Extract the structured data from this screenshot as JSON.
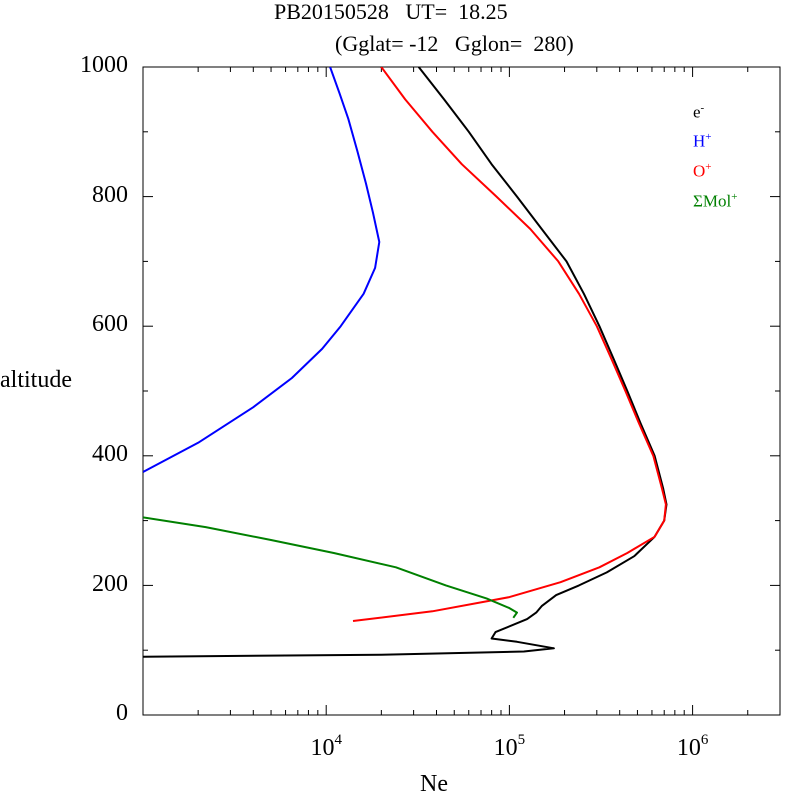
{
  "header": {
    "title_line1": "PB20150528   UT=  18.25",
    "title_line2": "(Gglat= -12   Gglon=  280)"
  },
  "chart_data": {
    "type": "line",
    "title": "PB20150528   UT=  18.25",
    "subtitle": "(Gglat= -12   Gglon=  280)",
    "xlabel": "Ne",
    "ylabel": "altitude",
    "x_scale": "log",
    "xlim": [
      1000,
      3000000
    ],
    "ylim": [
      0,
      1000
    ],
    "x_major_ticks": [
      10000,
      100000,
      1000000
    ],
    "x_tick_labels": [
      {
        "base": "10",
        "exp": "4"
      },
      {
        "base": "10",
        "exp": "5"
      },
      {
        "base": "10",
        "exp": "6"
      }
    ],
    "y_ticks": [
      0,
      200,
      400,
      600,
      800,
      1000
    ],
    "y_tick_labels": [
      "0",
      "200",
      "400",
      "600",
      "800",
      "1000"
    ],
    "grid": false,
    "legend_position": "top-right",
    "legend": [
      {
        "base": "e",
        "sup": "-",
        "color": "#000000"
      },
      {
        "base": "H",
        "sup": "+",
        "color": "#0000ff"
      },
      {
        "base": "O",
        "sup": "+",
        "color": "#ff0000"
      },
      {
        "base": "ΣMol",
        "sup": "+",
        "color": "#008000"
      }
    ],
    "series": [
      {
        "color": "#000000",
        "points": [
          [
            1000,
            90
          ],
          [
            20000,
            93
          ],
          [
            120000,
            98
          ],
          [
            175000,
            103
          ],
          [
            110000,
            113
          ],
          [
            80000,
            118
          ],
          [
            84000,
            128
          ],
          [
            125000,
            148
          ],
          [
            140000,
            158
          ],
          [
            150000,
            168
          ],
          [
            180000,
            185
          ],
          [
            240000,
            200
          ],
          [
            340000,
            220
          ],
          [
            480000,
            245
          ],
          [
            620000,
            275
          ],
          [
            700000,
            300
          ],
          [
            720000,
            325
          ],
          [
            690000,
            350
          ],
          [
            620000,
            400
          ],
          [
            520000,
            450
          ],
          [
            440000,
            500
          ],
          [
            370000,
            550
          ],
          [
            310000,
            600
          ],
          [
            255000,
            650
          ],
          [
            205000,
            700
          ],
          [
            150000,
            750
          ],
          [
            110000,
            800
          ],
          [
            80000,
            850
          ],
          [
            60000,
            900
          ],
          [
            44000,
            950
          ],
          [
            32000,
            1000
          ]
        ]
      },
      {
        "color": "#0000ff",
        "points": [
          [
            1000,
            375
          ],
          [
            2000,
            420
          ],
          [
            4000,
            475
          ],
          [
            6500,
            520
          ],
          [
            9500,
            565
          ],
          [
            12000,
            600
          ],
          [
            16000,
            650
          ],
          [
            18500,
            690
          ],
          [
            19500,
            730
          ],
          [
            18000,
            775
          ],
          [
            16500,
            820
          ],
          [
            14800,
            870
          ],
          [
            13200,
            920
          ],
          [
            11800,
            960
          ],
          [
            10500,
            1000
          ]
        ]
      },
      {
        "color": "#ff0000",
        "points": [
          [
            14000,
            145
          ],
          [
            38000,
            160
          ],
          [
            100000,
            182
          ],
          [
            190000,
            205
          ],
          [
            310000,
            228
          ],
          [
            440000,
            250
          ],
          [
            620000,
            275
          ],
          [
            700000,
            300
          ],
          [
            715000,
            325
          ],
          [
            680000,
            350
          ],
          [
            610000,
            400
          ],
          [
            510000,
            450
          ],
          [
            430000,
            500
          ],
          [
            360000,
            550
          ],
          [
            300000,
            600
          ],
          [
            240000,
            650
          ],
          [
            185000,
            700
          ],
          [
            130000,
            750
          ],
          [
            85000,
            800
          ],
          [
            55000,
            850
          ],
          [
            38000,
            900
          ],
          [
            27000,
            950
          ],
          [
            20000,
            1000
          ]
        ]
      },
      {
        "color": "#008000",
        "points": [
          [
            1000,
            305
          ],
          [
            2200,
            290
          ],
          [
            5000,
            270
          ],
          [
            11000,
            250
          ],
          [
            24000,
            228
          ],
          [
            45000,
            200
          ],
          [
            75000,
            180
          ],
          [
            100000,
            165
          ],
          [
            110000,
            158
          ],
          [
            105000,
            150
          ]
        ]
      }
    ]
  }
}
